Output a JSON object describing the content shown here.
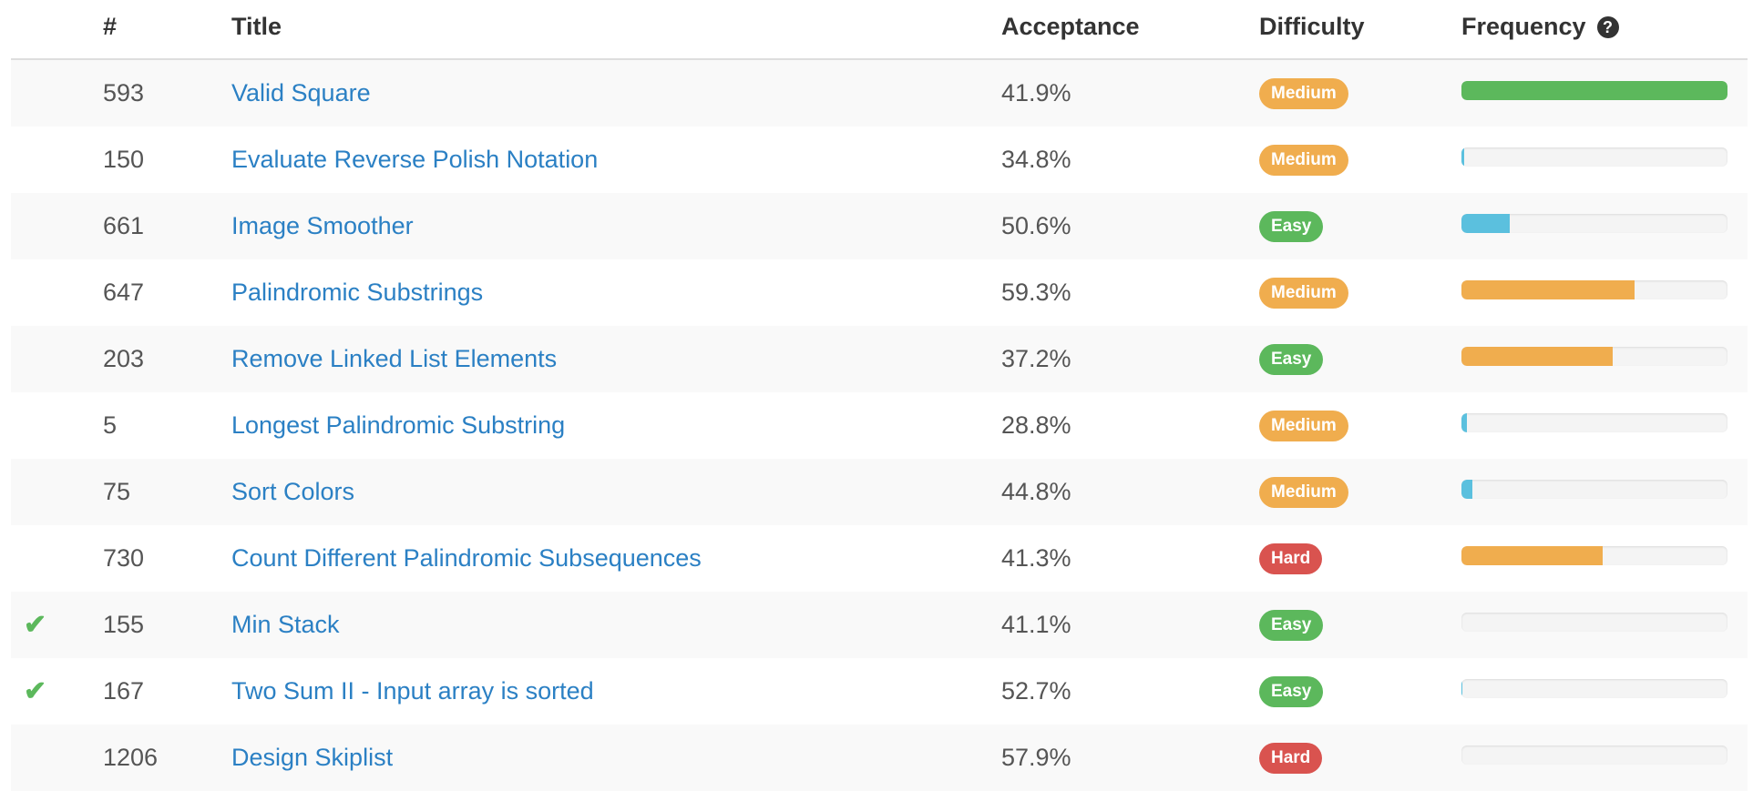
{
  "colors": {
    "link": "#2b80c4",
    "check": "#5cb85c",
    "badge_medium": "#f0ad4e",
    "badge_easy": "#5cb85c",
    "badge_hard": "#d9534f",
    "freq_green": "#5cb85c",
    "freq_orange": "#f0ad4e",
    "freq_blue": "#5bc0de"
  },
  "table": {
    "headers": {
      "number": "#",
      "title": "Title",
      "acceptance": "Acceptance",
      "difficulty": "Difficulty",
      "frequency": "Frequency",
      "frequency_help_icon": "question-circle-icon"
    },
    "rows": [
      {
        "solved": false,
        "number": "593",
        "title": "Valid Square",
        "acceptance": "41.9%",
        "difficulty": "Medium",
        "frequency": 1.0,
        "frequency_color": "green"
      },
      {
        "solved": false,
        "number": "150",
        "title": "Evaluate Reverse Polish Notation",
        "acceptance": "34.8%",
        "difficulty": "Medium",
        "frequency": 0.01,
        "frequency_color": "blue"
      },
      {
        "solved": false,
        "number": "661",
        "title": "Image Smoother",
        "acceptance": "50.6%",
        "difficulty": "Easy",
        "frequency": 0.18,
        "frequency_color": "blue"
      },
      {
        "solved": false,
        "number": "647",
        "title": "Palindromic Substrings",
        "acceptance": "59.3%",
        "difficulty": "Medium",
        "frequency": 0.65,
        "frequency_color": "orange"
      },
      {
        "solved": false,
        "number": "203",
        "title": "Remove Linked List Elements",
        "acceptance": "37.2%",
        "difficulty": "Easy",
        "frequency": 0.57,
        "frequency_color": "orange"
      },
      {
        "solved": false,
        "number": "5",
        "title": "Longest Palindromic Substring",
        "acceptance": "28.8%",
        "difficulty": "Medium",
        "frequency": 0.02,
        "frequency_color": "blue"
      },
      {
        "solved": false,
        "number": "75",
        "title": "Sort Colors",
        "acceptance": "44.8%",
        "difficulty": "Medium",
        "frequency": 0.04,
        "frequency_color": "blue"
      },
      {
        "solved": false,
        "number": "730",
        "title": "Count Different Palindromic Subsequences",
        "acceptance": "41.3%",
        "difficulty": "Hard",
        "frequency": 0.53,
        "frequency_color": "orange"
      },
      {
        "solved": true,
        "number": "155",
        "title": "Min Stack",
        "acceptance": "41.1%",
        "difficulty": "Easy",
        "frequency": 0.0,
        "frequency_color": "blue"
      },
      {
        "solved": true,
        "number": "167",
        "title": "Two Sum II - Input array is sorted",
        "acceptance": "52.7%",
        "difficulty": "Easy",
        "frequency": 0.005,
        "frequency_color": "blue"
      },
      {
        "solved": false,
        "number": "1206",
        "title": "Design Skiplist",
        "acceptance": "57.9%",
        "difficulty": "Hard",
        "frequency": 0.0,
        "frequency_color": "blue"
      }
    ]
  }
}
